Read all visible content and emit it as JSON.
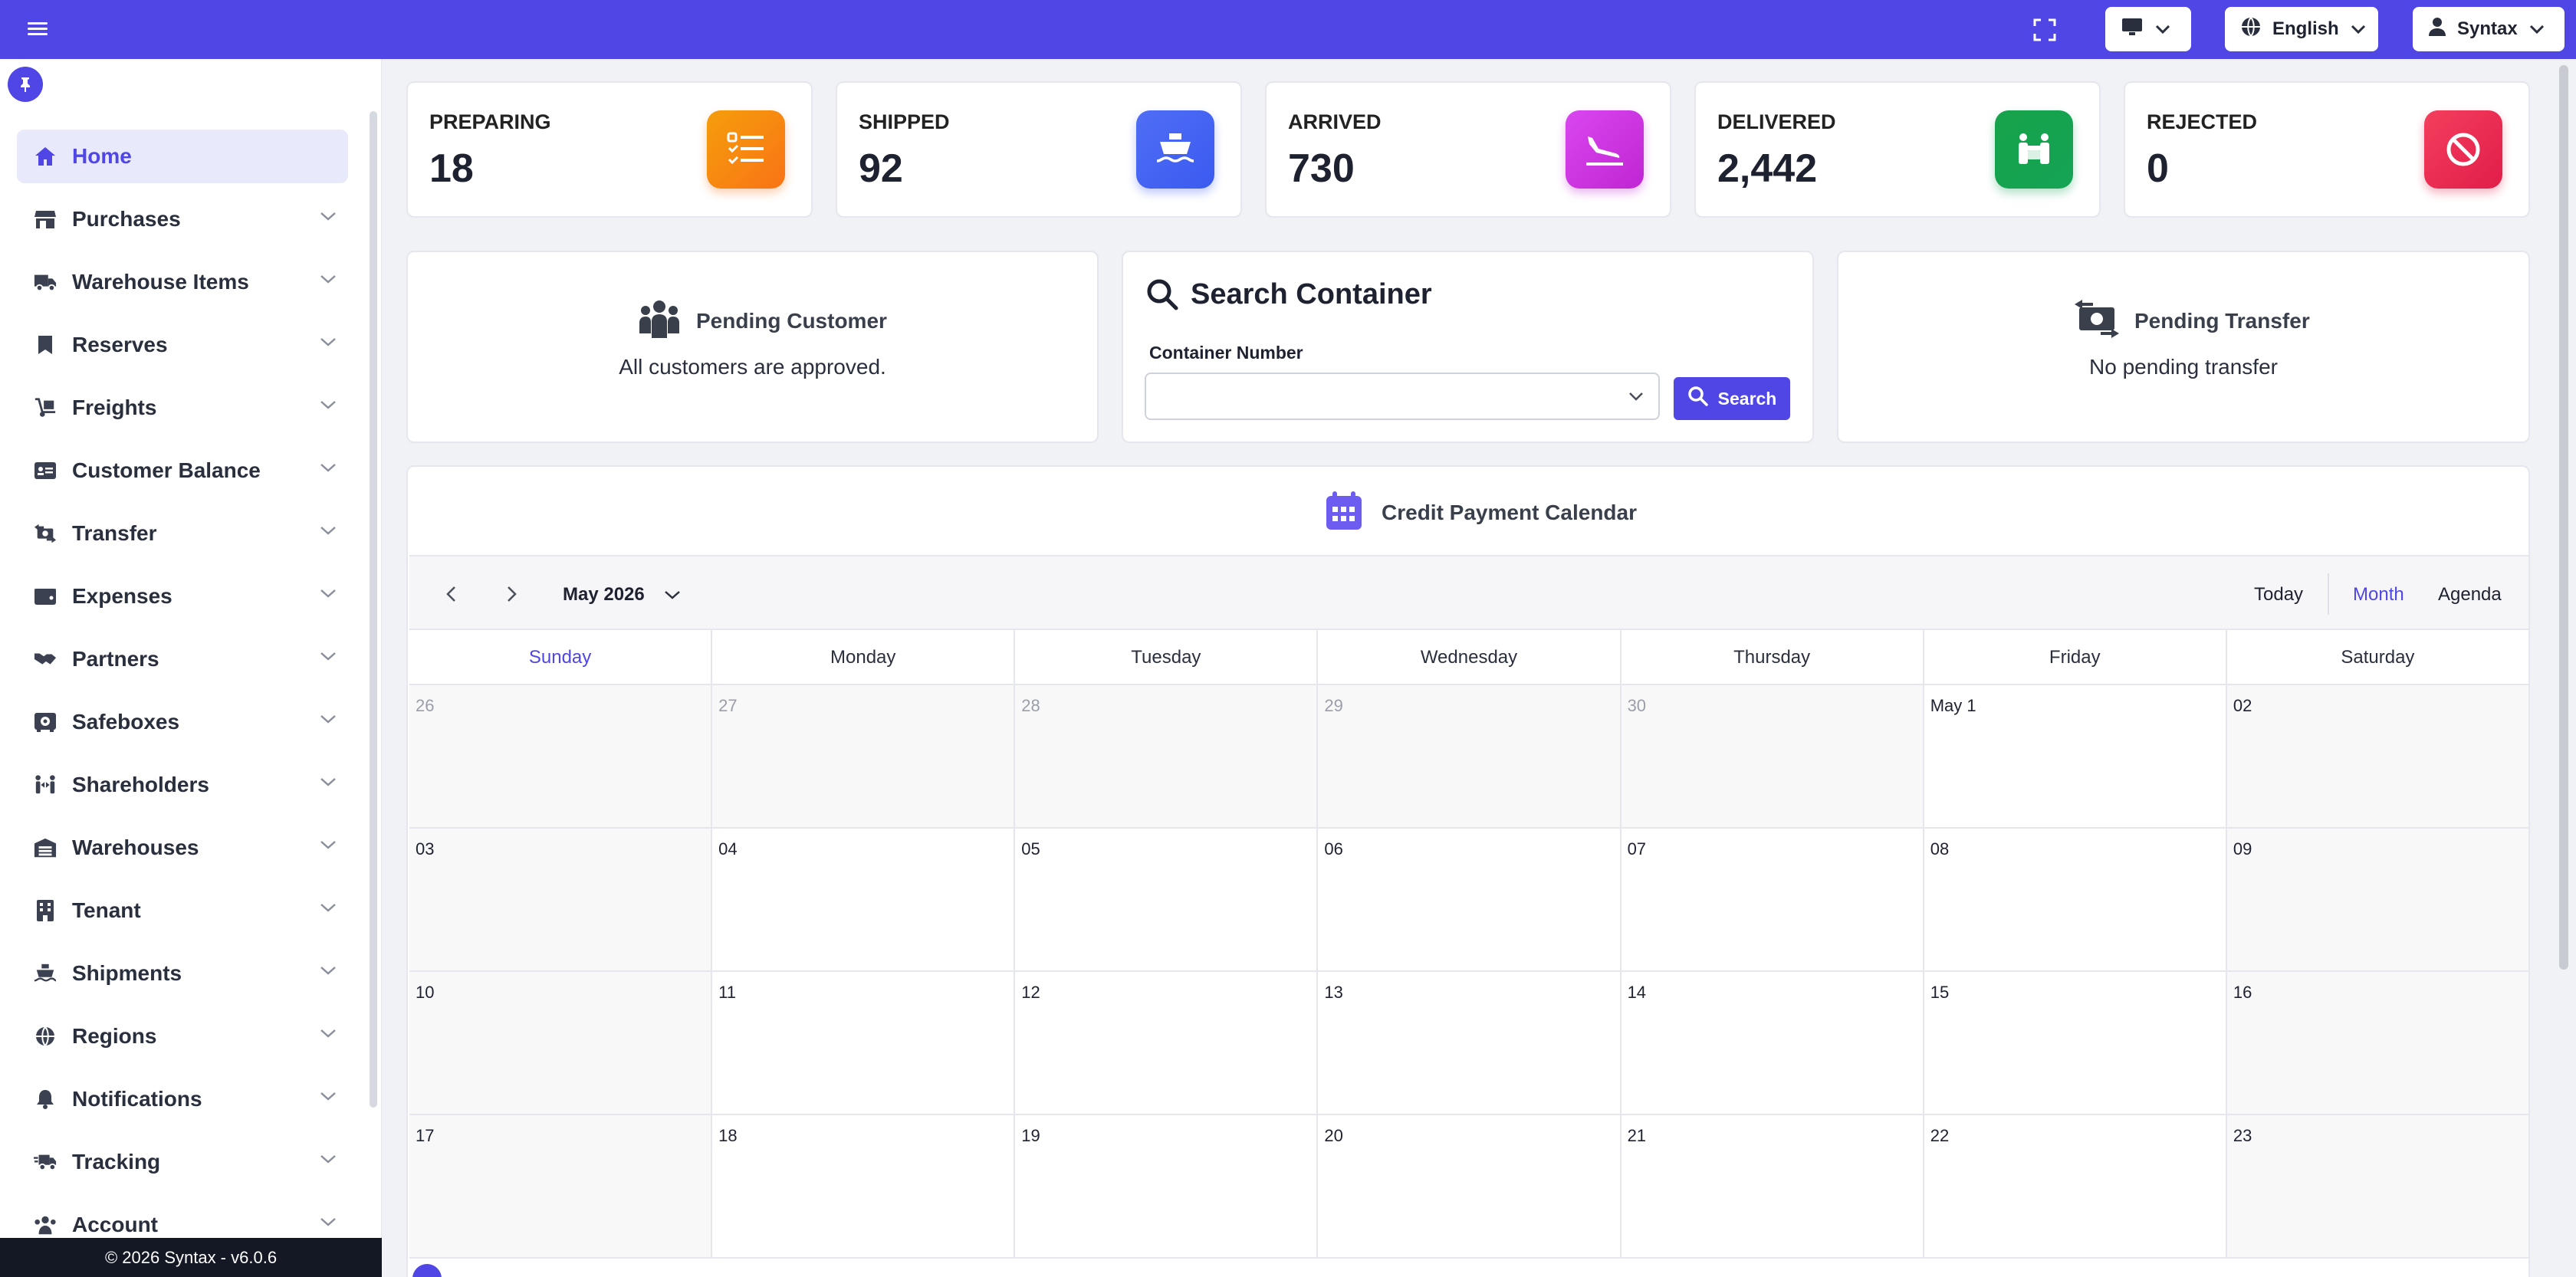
{
  "topbar": {
    "display_icon": "monitor-icon",
    "language": "English",
    "user": "Syntax"
  },
  "sidebar": {
    "items": [
      {
        "label": "Home",
        "icon": "home-icon"
      },
      {
        "label": "Purchases",
        "icon": "store-icon"
      },
      {
        "label": "Warehouse Items",
        "icon": "truck-icon"
      },
      {
        "label": "Reserves",
        "icon": "bookmark-icon"
      },
      {
        "label": "Freights",
        "icon": "dolly-icon"
      },
      {
        "label": "Customer Balance",
        "icon": "id-card-icon"
      },
      {
        "label": "Transfer",
        "icon": "money-transfer-icon"
      },
      {
        "label": "Expenses",
        "icon": "wallet-icon"
      },
      {
        "label": "Partners",
        "icon": "handshake-icon"
      },
      {
        "label": "Safeboxes",
        "icon": "safe-icon"
      },
      {
        "label": "Shareholders",
        "icon": "people-arrows-icon"
      },
      {
        "label": "Warehouses",
        "icon": "warehouse-icon"
      },
      {
        "label": "Tenant",
        "icon": "building-icon"
      },
      {
        "label": "Shipments",
        "icon": "ship-icon"
      },
      {
        "label": "Regions",
        "icon": "globe-icon"
      },
      {
        "label": "Notifications",
        "icon": "bell-icon"
      },
      {
        "label": "Tracking",
        "icon": "shipping-fast-icon"
      },
      {
        "label": "Account",
        "icon": "users-icon"
      }
    ],
    "footer": "© 2026 Syntax - v6.0.6"
  },
  "stats": [
    {
      "label": "PREPARING",
      "value": "18",
      "color_from": "#f59e0b",
      "color_to": "#f97316"
    },
    {
      "label": "SHIPPED",
      "value": "92",
      "color_from": "#4f6df5",
      "color_to": "#3b5bf0"
    },
    {
      "label": "ARRIVED",
      "value": "730",
      "color_from": "#d946ef",
      "color_to": "#c026d3"
    },
    {
      "label": "DELIVERED",
      "value": "2,442",
      "color_from": "#16a34a",
      "color_to": "#15a356"
    },
    {
      "label": "REJECTED",
      "value": "0",
      "color_from": "#f43f5e",
      "color_to": "#e11d48"
    }
  ],
  "pending_customer": {
    "title": "Pending Customer",
    "message": "All customers are approved."
  },
  "search_container": {
    "title": "Search Container",
    "field_label": "Container Number",
    "field_value": "",
    "button": "Search"
  },
  "pending_transfer": {
    "title": "Pending Transfer",
    "message": "No pending transfer"
  },
  "calendar": {
    "title": "Credit Payment Calendar",
    "month": "May 2026",
    "views": {
      "today": "Today",
      "month": "Month",
      "agenda": "Agenda"
    },
    "weekdays": [
      "Sunday",
      "Monday",
      "Tuesday",
      "Wednesday",
      "Thursday",
      "Friday",
      "Saturday"
    ],
    "weeks": [
      [
        "26",
        "27",
        "28",
        "29",
        "30",
        "May 1",
        "02"
      ],
      [
        "03",
        "04",
        "05",
        "06",
        "07",
        "08",
        "09"
      ],
      [
        "10",
        "11",
        "12",
        "13",
        "14",
        "15",
        "16"
      ],
      [
        "17",
        "18",
        "19",
        "20",
        "21",
        "22",
        "23"
      ]
    ]
  },
  "accent": "#4f46e5"
}
